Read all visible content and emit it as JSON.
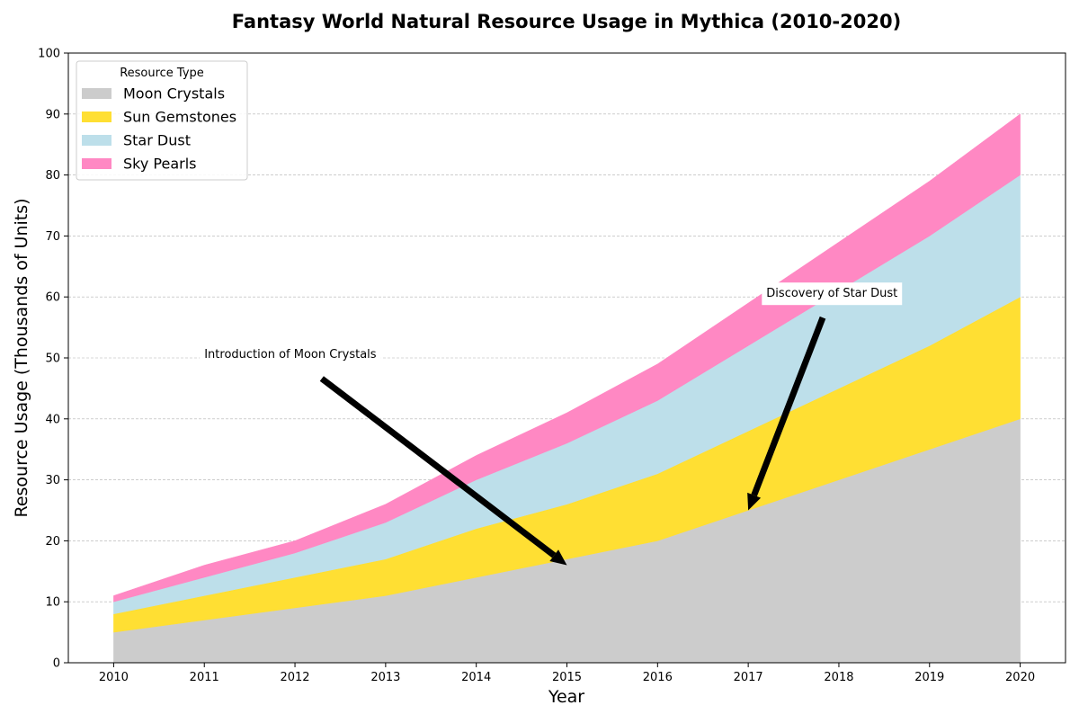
{
  "chart_data": {
    "type": "area",
    "stacked": true,
    "title": "Fantasy World Natural Resource Usage in Mythica (2010-2020)",
    "xlabel": "Year",
    "ylabel": "Resource Usage (Thousands of Units)",
    "x": [
      2010,
      2011,
      2012,
      2013,
      2014,
      2015,
      2016,
      2017,
      2018,
      2019,
      2020
    ],
    "xlim": [
      2009.5,
      2020.5
    ],
    "ylim": [
      0,
      100
    ],
    "yticks": [
      0,
      10,
      20,
      30,
      40,
      50,
      60,
      70,
      80,
      90,
      100
    ],
    "grid": "y-dashed",
    "legend": {
      "title": "Resource Type",
      "placement": "top-left"
    },
    "series": [
      {
        "name": "Moon Crystals",
        "color": "#cccccc",
        "values": [
          5,
          7,
          9,
          11,
          14,
          17,
          20,
          25,
          30,
          35,
          40
        ]
      },
      {
        "name": "Sun Gemstones",
        "color": "#ffdf33",
        "values": [
          3,
          4,
          5,
          6,
          8,
          9,
          11,
          13,
          15,
          17,
          20
        ]
      },
      {
        "name": "Star Dust",
        "color": "#bddfea",
        "values": [
          2,
          3,
          4,
          6,
          8,
          10,
          12,
          14,
          16,
          18,
          20
        ]
      },
      {
        "name": "Sky Pearls",
        "color": "#ff88c3",
        "values": [
          1,
          2,
          2,
          3,
          4,
          5,
          6,
          7,
          8,
          9,
          10
        ]
      }
    ],
    "annotations": [
      {
        "text": "Introduction of Moon Crystals",
        "text_at": [
          2011,
          50
        ],
        "point_at": [
          2015,
          16
        ]
      },
      {
        "text": "Discovery of Star Dust",
        "text_at": [
          2017.2,
          60
        ],
        "point_at": [
          2017,
          25
        ]
      }
    ]
  }
}
